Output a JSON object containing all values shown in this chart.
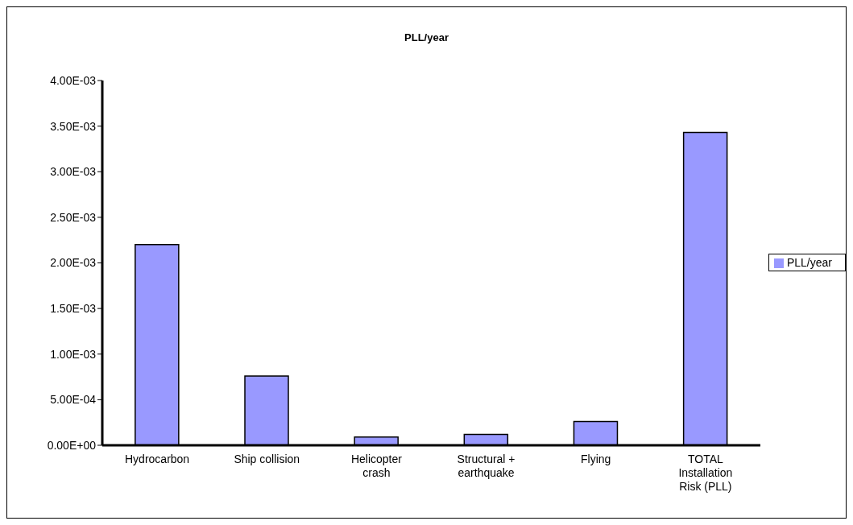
{
  "chart_data": {
    "type": "bar",
    "title": "PLL/year",
    "categories": [
      "Hydrocarbon",
      "Ship collision",
      "Helicopter crash",
      "Structural + earthquake",
      "Flying",
      "TOTAL Installation Risk (PLL)"
    ],
    "series": [
      {
        "name": "PLL/year",
        "color": "#9999ff",
        "values": [
          0.0022,
          0.00076,
          9e-05,
          0.00012,
          0.00026,
          0.00343
        ]
      }
    ],
    "ylim": [
      0,
      0.004
    ],
    "yticks": [
      {
        "value": 0,
        "label": "0.00E+00"
      },
      {
        "value": 0.0005,
        "label": "5.00E-04"
      },
      {
        "value": 0.001,
        "label": "1.00E-03"
      },
      {
        "value": 0.0015,
        "label": "1.50E-03"
      },
      {
        "value": 0.002,
        "label": "2.00E-03"
      },
      {
        "value": 0.0025,
        "label": "2.50E-03"
      },
      {
        "value": 0.003,
        "label": "3.00E-03"
      },
      {
        "value": 0.0035,
        "label": "3.50E-03"
      },
      {
        "value": 0.004,
        "label": "4.00E-03"
      }
    ],
    "grid": false,
    "legend": "right"
  }
}
